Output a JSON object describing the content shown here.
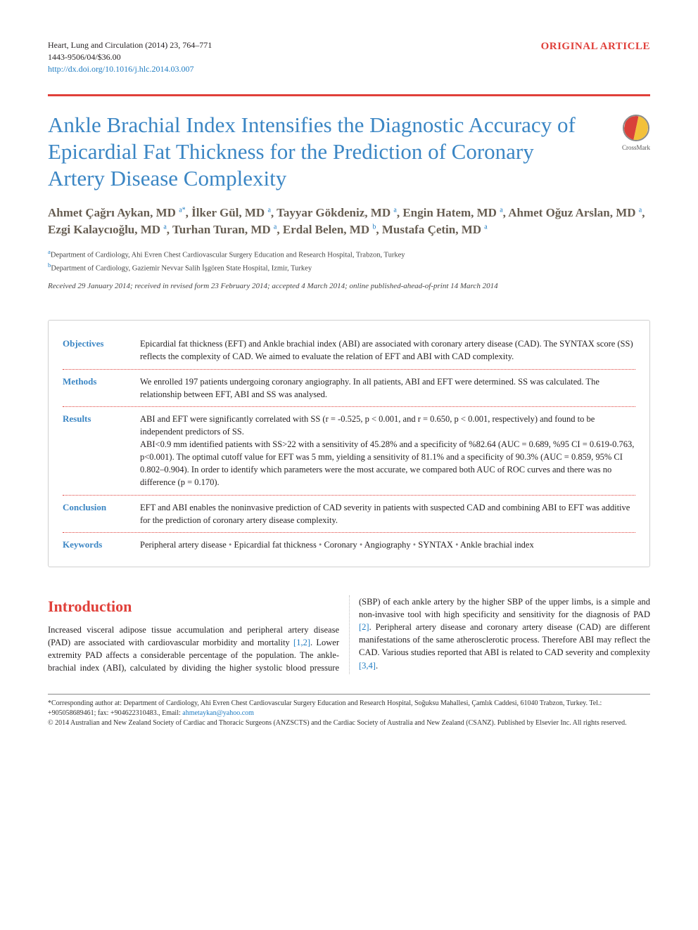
{
  "colors": {
    "accent_red": "#e0403a",
    "accent_blue": "#3b86c4",
    "link_blue": "#1f7cc2",
    "author_olive": "#675e52",
    "text": "#231f20",
    "rule_gray": "#888888",
    "box_border": "#d0d0d0",
    "crossmark_red": "#d9413a",
    "crossmark_yellow": "#f3c13a"
  },
  "journal": {
    "citation_line": "Heart, Lung and Circulation (2014) 23, 764–771",
    "issn_price": "1443-9506/04/$36.00",
    "doi_url": "http://dx.doi.org/10.1016/j.hlc.2014.03.007"
  },
  "article_type": "ORIGINAL ARTICLE",
  "title": "Ankle Brachial Index Intensifies the Diagnostic Accuracy of Epicardial Fat Thickness for the Prediction of Coronary Artery Disease Complexity",
  "crossmark_label": "CrossMark",
  "authors_html": "Ahmet Çağrı Aykan, MD <sup>a*</sup>, İlker Gül, MD <sup>a</sup>, Tayyar Gökdeniz, MD <sup>a</sup>, Engin Hatem, MD <sup>a</sup>, Ahmet Oğuz Arslan, MD <sup>a</sup>, Ezgi Kalaycıoğlu, MD <sup>a</sup>, Turhan Turan, MD <sup>a</sup>, Erdal Belen, MD <sup>b</sup>, Mustafa Çetin, MD <sup>a</sup>",
  "affiliations": [
    {
      "marker": "a",
      "text": "Department of Cardiology, Ahi Evren Chest Cardiovascular Surgery Education and Research Hospital, Trabzon, Turkey"
    },
    {
      "marker": "b",
      "text": "Department of Cardiology, Gaziemir Nevvar Salih İşgören State Hospital, Izmir, Turkey"
    }
  ],
  "history": "Received 29 January 2014; received in revised form 23 February 2014; accepted 4 March 2014; online published-ahead-of-print 14 March 2014",
  "abstract": {
    "objectives": "Epicardial fat thickness (EFT) and Ankle brachial index (ABI) are associated with coronary artery disease (CAD). The SYNTAX score (SS) reflects the complexity of CAD. We aimed to evaluate the relation of EFT and ABI with CAD complexity.",
    "methods": "We enrolled 197 patients undergoing coronary angiography. In all patients, ABI and EFT were determined. SS was calculated. The relationship between EFT, ABI and SS was analysed.",
    "results": "ABI and EFT were significantly correlated with SS (r = -0.525, p < 0.001, and r = 0.650, p < 0.001, respectively) and found to be independent predictors of SS.\nABI<0.9 mm identified patients with SS>22 with a sensitivity of 45.28% and a specificity of %82.64 (AUC = 0.689, %95 CI = 0.619-0.763, p<0.001). The optimal cutoff value for EFT was 5 mm, yielding a sensitivity of 81.1% and a specificity of 90.3% (AUC = 0.859, 95% CI 0.802–0.904). In order to identify which parameters were the most accurate, we compared both AUC of ROC curves and there was no difference (p = 0.170).",
    "conclusion": "EFT and ABI enables the noninvasive prediction of CAD severity in patients with suspected CAD and combining ABI to EFT was additive for the prediction of coronary artery disease complexity.",
    "keywords": [
      "Peripheral artery disease",
      "Epicardial fat thickness",
      "Coronary",
      "Angiography",
      "SYNTAX",
      "Ankle brachial index"
    ],
    "labels": {
      "objectives": "Objectives",
      "methods": "Methods",
      "results": "Results",
      "conclusion": "Conclusion",
      "keywords": "Keywords"
    }
  },
  "introduction": {
    "heading": "Introduction",
    "para1_pre": "Increased visceral adipose tissue accumulation and peripheral artery disease (PAD) are associated with cardiovascular morbidity and mortality ",
    "cite1": "[1,2]",
    "para1_post": ". Lower extremity PAD affects a considerable percentage of the population. The ankle-brachial index (ABI), calculated by dividing the higher systolic blood ",
    "para2_pre": "pressure (SBP) of each ankle artery by the higher SBP of the upper limbs, is a simple and non-invasive tool with high specificity and sensitivity for the diagnosis of PAD ",
    "cite2": "[2]",
    "para2_mid": ". Peripheral artery disease and coronary artery disease (CAD) are different manifestations of the same atherosclerotic process. Therefore ABI may reflect the CAD. Various studies reported that ABI is related to CAD severity and complexity ",
    "cite3": "[3,4]",
    "para2_post": "."
  },
  "footer": {
    "corresponding": "*Corresponding author at: Department of Cardiology, Ahi Evren Chest Cardiovascular Surgery Education and Research Hospital, Soğuksu Mahallesi, Çamlık Caddesi, 61040 Trabzon, Turkey. Tel.: +905058689461; fax: +904622310483., Email: ",
    "email": "ahmetaykan@yahoo.com",
    "copyright": "© 2014 Australian and New Zealand Society of Cardiac and Thoracic Surgeons (ANZSCTS) and the Cardiac Society of Australia and New Zealand (CSANZ). Published by Elsevier Inc. All rights reserved."
  }
}
